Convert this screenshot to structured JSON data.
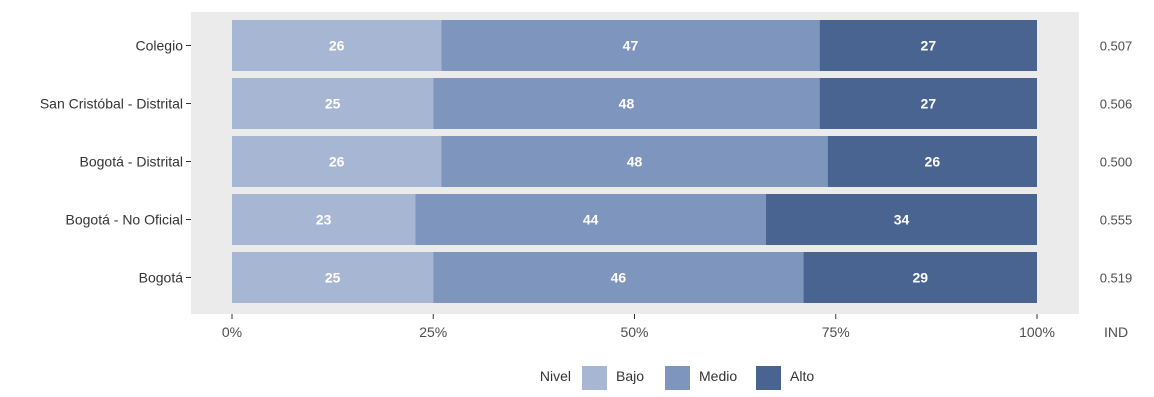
{
  "chart_data": {
    "type": "bar",
    "orientation": "horizontal",
    "stacked": true,
    "categories": [
      "Colegio",
      "San Cristóbal - Distrital",
      "Bogotá - Distrital",
      "Bogotá - No Oficial",
      "Bogotá"
    ],
    "series": [
      {
        "name": "Bajo",
        "values": [
          26,
          25,
          26,
          23,
          25
        ],
        "color": "#a7b7d3"
      },
      {
        "name": "Medio",
        "values": [
          47,
          48,
          48,
          44,
          46
        ],
        "color": "#7e95bd"
      },
      {
        "name": "Alto",
        "values": [
          27,
          27,
          26,
          34,
          29
        ],
        "color": "#4a6491"
      }
    ],
    "x_ticks": [
      "0%",
      "25%",
      "50%",
      "75%",
      "100%"
    ],
    "xlim": [
      0,
      100
    ],
    "ind_header": "IND",
    "ind_values": [
      "0.507",
      "0.506",
      "0.500",
      "0.555",
      "0.519"
    ],
    "legend": {
      "title": "Nivel",
      "position": "bottom"
    },
    "panel_background": "#ebebeb",
    "grid": false
  }
}
